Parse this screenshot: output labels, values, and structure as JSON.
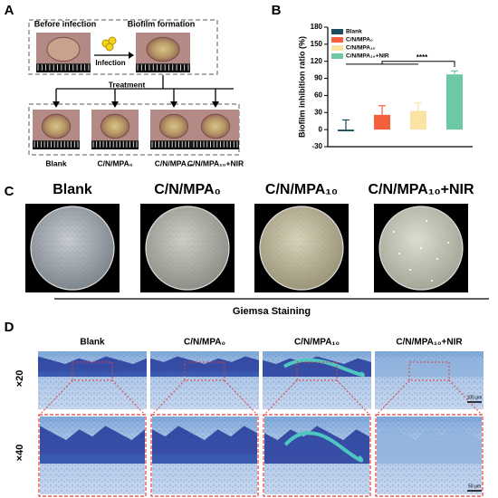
{
  "panel_labels": [
    "A",
    "B",
    "C",
    "D"
  ],
  "groups": [
    "Blank",
    "C/N/MPA₀",
    "C/N/MPA₁₀",
    "C/N/MPA₁₀+NIR"
  ],
  "panel_a": {
    "before": "Before infection",
    "biofilm": "Biofilm formation",
    "infection": "Infection",
    "treatment": "Treatment"
  },
  "chart_data": {
    "type": "bar",
    "y_label": "Biofilm inhibition ratio (%)",
    "ylim": [
      -30,
      180
    ],
    "yticks": [
      -30,
      0,
      30,
      60,
      90,
      120,
      150,
      180
    ],
    "annotation": "****",
    "series": [
      {
        "name": "Blank",
        "color": "#1d4e5e",
        "values": [
          -3
        ],
        "errors": [
          20
        ]
      },
      {
        "name": "C/N/MPA₀",
        "color": "#f4603e",
        "values": [
          26
        ],
        "errors": [
          16
        ]
      },
      {
        "name": "C/N/MPA₁₀",
        "color": "#fbe3a4",
        "values": [
          33
        ],
        "errors": [
          14
        ]
      },
      {
        "name": "C/N/MPA₁₀+NIR",
        "color": "#6dc9a4",
        "values": [
          97
        ],
        "errors": [
          6
        ]
      }
    ]
  },
  "panel_d": {
    "title": "Giemsa Staining",
    "rows": [
      "×20",
      "×40"
    ],
    "scale_bars": [
      "100 μm",
      "50 μm"
    ]
  }
}
